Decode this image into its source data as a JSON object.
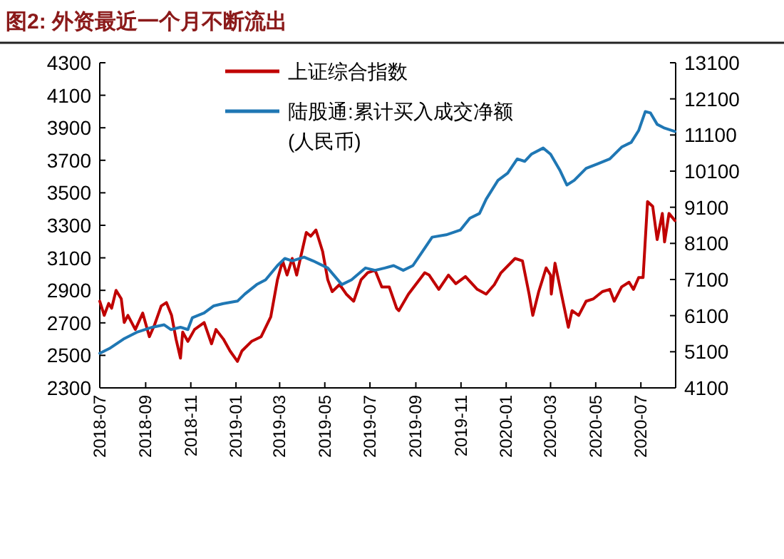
{
  "chart_data": {
    "type": "line",
    "title": "图2:  外资最近一个月不断流出",
    "legend": "top",
    "line_style": "solid",
    "xlim": [
      "2018-07-01",
      "2020-08-17"
    ],
    "xticks": [
      {
        "value": "2018-07",
        "label": "2018-07"
      },
      {
        "value": "2018-09",
        "label": "2018-09"
      },
      {
        "value": "2018-11",
        "label": "2018-11"
      },
      {
        "value": "2019-01",
        "label": "2019-01"
      },
      {
        "value": "2019-03",
        "label": "2019-03"
      },
      {
        "value": "2019-05",
        "label": "2019-05"
      },
      {
        "value": "2019-07",
        "label": "2019-07"
      },
      {
        "value": "2019-09",
        "label": "2019-09"
      },
      {
        "value": "2019-11",
        "label": "2019-11"
      },
      {
        "value": "2020-01",
        "label": "2020-01"
      },
      {
        "value": "2020-03",
        "label": "2020-03"
      },
      {
        "value": "2020-05",
        "label": "2020-05"
      },
      {
        "value": "2020-07",
        "label": "2020-07"
      }
    ],
    "ylim": [
      2300,
      4300
    ],
    "yticks": [
      2300,
      2500,
      2700,
      2900,
      3100,
      3300,
      3500,
      3700,
      3900,
      4100,
      4300
    ],
    "y2lim": [
      4100,
      13100
    ],
    "y2ticks": [
      4100,
      5100,
      6100,
      7100,
      8100,
      9100,
      10100,
      11100,
      12100,
      13100
    ],
    "series": [
      {
        "name": "上证综合指数",
        "color": "#c00000",
        "x": [
          "2018-07-01",
          "2018-07-07",
          "2018-07-13",
          "2018-07-17",
          "2018-07-23",
          "2018-07-30",
          "2018-08-03",
          "2018-08-08",
          "2018-08-18",
          "2018-08-28",
          "2018-09-06",
          "2018-09-13",
          "2018-09-22",
          "2018-09-29",
          "2018-10-06",
          "2018-10-12",
          "2018-10-18",
          "2018-10-21",
          "2018-10-28",
          "2018-11-06",
          "2018-11-19",
          "2018-11-29",
          "2018-12-05",
          "2018-12-15",
          "2018-12-24",
          "2019-01-03",
          "2019-01-09",
          "2019-01-22",
          "2019-02-04",
          "2019-02-17",
          "2019-02-26",
          "2019-03-05",
          "2019-03-11",
          "2019-03-18",
          "2019-03-24",
          "2019-03-29",
          "2019-04-06",
          "2019-04-12",
          "2019-04-19",
          "2019-04-28",
          "2019-05-05",
          "2019-05-11",
          "2019-05-21",
          "2019-05-30",
          "2019-06-09",
          "2019-06-19",
          "2019-06-28",
          "2019-07-08",
          "2019-07-17",
          "2019-07-27",
          "2019-08-06",
          "2019-08-09",
          "2019-08-22",
          "2019-09-13",
          "2019-09-19",
          "2019-10-02",
          "2019-10-15",
          "2019-10-25",
          "2019-11-07",
          "2019-11-23",
          "2019-12-05",
          "2019-12-16",
          "2019-12-25",
          "2020-01-13",
          "2020-01-23",
          "2020-02-01",
          "2020-02-06",
          "2020-02-14",
          "2020-02-24",
          "2020-03-01",
          "2020-03-02",
          "2020-03-07",
          "2020-03-17",
          "2020-03-25",
          "2020-03-30",
          "2020-04-08",
          "2020-04-18",
          "2020-04-28",
          "2020-05-10",
          "2020-05-20",
          "2020-05-26",
          "2020-06-05",
          "2020-06-15",
          "2020-06-21",
          "2020-06-28",
          "2020-07-04",
          "2020-07-10",
          "2020-07-17",
          "2020-07-23",
          "2020-07-30",
          "2020-08-02",
          "2020-08-08",
          "2020-08-16"
        ],
        "values": [
          2833,
          2746,
          2819,
          2790,
          2900,
          2848,
          2702,
          2746,
          2659,
          2760,
          2615,
          2688,
          2804,
          2825,
          2746,
          2600,
          2483,
          2643,
          2586,
          2659,
          2702,
          2571,
          2659,
          2600,
          2527,
          2463,
          2527,
          2586,
          2615,
          2737,
          2965,
          3081,
          2994,
          3096,
          2994,
          3096,
          3256,
          3233,
          3271,
          3140,
          2965,
          2892,
          2936,
          2877,
          2833,
          2965,
          3009,
          3023,
          2921,
          2921,
          2790,
          2775,
          2877,
          3008,
          2994,
          2906,
          2994,
          2941,
          2985,
          2906,
          2877,
          2935,
          3008,
          3096,
          3081,
          2877,
          2746,
          2892,
          3038,
          2994,
          2877,
          3067,
          2848,
          2673,
          2775,
          2746,
          2833,
          2848,
          2892,
          2906,
          2833,
          2921,
          2950,
          2906,
          2979,
          2979,
          3446,
          3416,
          3212,
          3373,
          3198,
          3373,
          3329
        ]
      },
      {
        "name": "陆股通:累计买入成交净额\n(人民币)",
        "color": "#1f77b4",
        "axis": "y2",
        "x": [
          "2018-07-01",
          "2018-07-14",
          "2018-08-02",
          "2018-08-21",
          "2018-09-10",
          "2018-09-26",
          "2018-10-05",
          "2018-10-18",
          "2018-10-28",
          "2018-11-03",
          "2018-11-19",
          "2018-12-02",
          "2018-12-15",
          "2019-01-03",
          "2019-01-13",
          "2019-01-29",
          "2019-02-10",
          "2019-02-26",
          "2019-03-08",
          "2019-03-18",
          "2019-04-03",
          "2019-04-15",
          "2019-05-05",
          "2019-05-24",
          "2019-06-06",
          "2019-06-25",
          "2019-07-08",
          "2019-07-21",
          "2019-08-02",
          "2019-08-15",
          "2019-08-28",
          "2019-09-10",
          "2019-09-23",
          "2019-10-12",
          "2019-10-31",
          "2019-11-13",
          "2019-11-26",
          "2019-12-05",
          "2019-12-21",
          "2020-01-03",
          "2020-01-16",
          "2020-01-26",
          "2020-02-04",
          "2020-02-20",
          "2020-03-01",
          "2020-03-14",
          "2020-03-23",
          "2020-04-02",
          "2020-04-18",
          "2020-05-04",
          "2020-05-20",
          "2020-06-05",
          "2020-06-18",
          "2020-06-28",
          "2020-07-07",
          "2020-07-14",
          "2020-07-23",
          "2020-08-02",
          "2020-08-16"
        ],
        "values": [
          5058,
          5189,
          5451,
          5648,
          5779,
          5845,
          5714,
          5779,
          5714,
          6042,
          6173,
          6370,
          6435,
          6501,
          6698,
          6960,
          7091,
          7485,
          7682,
          7617,
          7721,
          7617,
          7419,
          6960,
          7091,
          7419,
          7354,
          7419,
          7485,
          7354,
          7485,
          7879,
          8272,
          8338,
          8469,
          8797,
          8928,
          9322,
          9847,
          10043,
          10437,
          10371,
          10568,
          10739,
          10568,
          10109,
          9715,
          9847,
          10175,
          10306,
          10437,
          10765,
          10896,
          11224,
          11749,
          11710,
          11395,
          11290,
          11198
        ]
      }
    ]
  }
}
